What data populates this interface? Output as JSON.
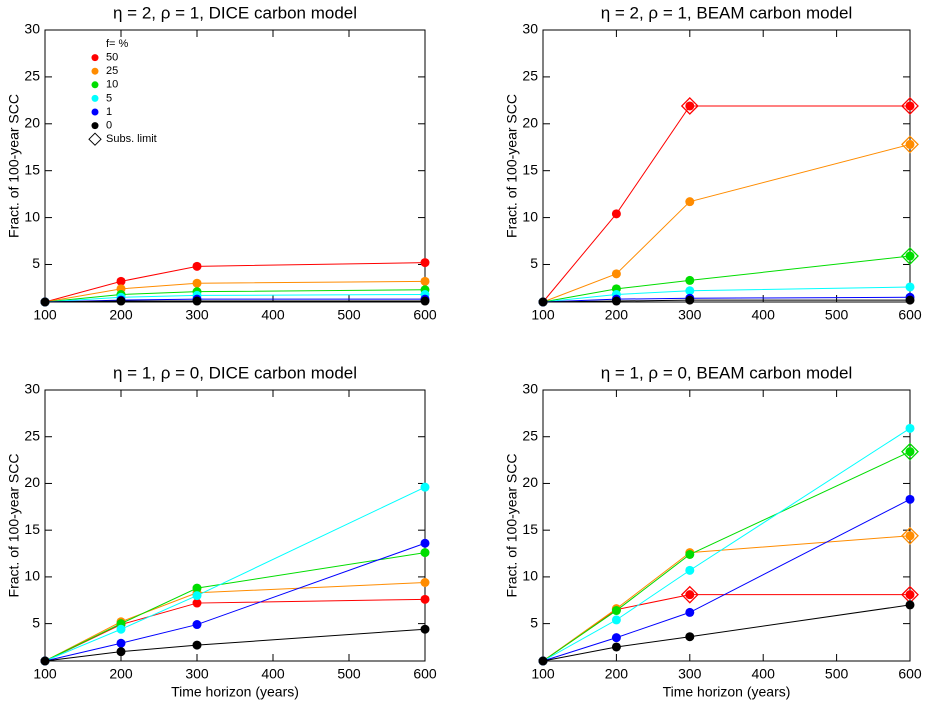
{
  "chart_data": [
    {
      "type": "line",
      "title": "η = 2, ρ = 1, DICE carbon model",
      "ylabel": "Fract. of 100-year SCC",
      "x": [
        100,
        200,
        300,
        600
      ],
      "xlim": [
        100,
        600
      ],
      "xticks": [
        100,
        200,
        300,
        400,
        500,
        600
      ],
      "ylim": [
        1,
        30
      ],
      "yticks": [
        5,
        10,
        15,
        20,
        25,
        30
      ],
      "legend_title": "f= %",
      "limit_label": "Subs. limit",
      "series": [
        {
          "name": "50",
          "color": "#ff0000",
          "values": [
            1,
            3.2,
            4.8,
            5.2
          ]
        },
        {
          "name": "25",
          "color": "#ff8c00",
          "values": [
            1,
            2.4,
            3.0,
            3.2
          ]
        },
        {
          "name": "10",
          "color": "#00dd00",
          "values": [
            1,
            1.8,
            2.1,
            2.3
          ]
        },
        {
          "name": "5",
          "color": "#00ffff",
          "values": [
            1,
            1.5,
            1.7,
            1.8
          ]
        },
        {
          "name": "1",
          "color": "#0000ff",
          "values": [
            1,
            1.2,
            1.3,
            1.3
          ]
        },
        {
          "name": "0",
          "color": "#000000",
          "values": [
            1,
            1.1,
            1.1,
            1.1
          ]
        }
      ]
    },
    {
      "type": "line",
      "title": "η = 2, ρ = 1, BEAM carbon model",
      "ylabel": "Fract. of 100-year SCC",
      "x": [
        100,
        200,
        300,
        600
      ],
      "xlim": [
        100,
        600
      ],
      "xticks": [
        100,
        200,
        300,
        400,
        500,
        600
      ],
      "ylim": [
        1,
        30
      ],
      "yticks": [
        5,
        10,
        15,
        20,
        25,
        30
      ],
      "series": [
        {
          "color": "#ff0000",
          "values": [
            1,
            10.4,
            21.9,
            21.9
          ],
          "limit_values": [
            null,
            null,
            21.9,
            21.9
          ]
        },
        {
          "color": "#ff8c00",
          "values": [
            1,
            4.0,
            11.7,
            17.8
          ],
          "limit_values": [
            null,
            null,
            null,
            17.8
          ]
        },
        {
          "color": "#00dd00",
          "values": [
            1,
            2.4,
            3.3,
            5.9
          ],
          "limit_values": [
            null,
            null,
            null,
            5.9
          ]
        },
        {
          "color": "#00ffff",
          "values": [
            1,
            1.8,
            2.2,
            2.6
          ]
        },
        {
          "color": "#0000ff",
          "values": [
            1,
            1.3,
            1.4,
            1.5
          ]
        },
        {
          "color": "#000000",
          "values": [
            1,
            1.1,
            1.2,
            1.2
          ]
        }
      ]
    },
    {
      "type": "line",
      "title": "η = 1, ρ = 0, DICE carbon model",
      "ylabel": "Fract. of 100-year SCC",
      "xlabel": "Time horizon (years)",
      "x": [
        100,
        200,
        300,
        600
      ],
      "xlim": [
        100,
        600
      ],
      "xticks": [
        100,
        200,
        300,
        400,
        500,
        600
      ],
      "ylim": [
        1,
        30
      ],
      "yticks": [
        5,
        10,
        15,
        20,
        25,
        30
      ],
      "series": [
        {
          "color": "#ff0000",
          "values": [
            1,
            4.9,
            7.2,
            7.6
          ]
        },
        {
          "color": "#ff8c00",
          "values": [
            1,
            5.2,
            8.3,
            9.4
          ]
        },
        {
          "color": "#00dd00",
          "values": [
            1,
            5.0,
            8.8,
            12.6
          ]
        },
        {
          "color": "#00ffff",
          "values": [
            1,
            4.4,
            8.0,
            19.6
          ]
        },
        {
          "color": "#0000ff",
          "values": [
            1,
            2.9,
            4.9,
            13.6
          ]
        },
        {
          "color": "#000000",
          "values": [
            1,
            2.0,
            2.7,
            4.4
          ]
        }
      ]
    },
    {
      "type": "line",
      "title": "η = 1, ρ = 0, BEAM carbon model",
      "ylabel": "Fract. of 100-year SCC",
      "xlabel": "Time horizon (years)",
      "x": [
        100,
        200,
        300,
        600
      ],
      "xlim": [
        100,
        600
      ],
      "xticks": [
        100,
        200,
        300,
        400,
        500,
        600
      ],
      "ylim": [
        1,
        30
      ],
      "yticks": [
        5,
        10,
        15,
        20,
        25,
        30
      ],
      "series": [
        {
          "color": "#ff0000",
          "values": [
            1,
            6.5,
            8.1,
            8.1
          ],
          "limit_values": [
            null,
            null,
            8.1,
            8.1
          ]
        },
        {
          "color": "#ff8c00",
          "values": [
            1,
            6.6,
            12.6,
            14.4
          ],
          "limit_values": [
            null,
            null,
            null,
            14.4
          ]
        },
        {
          "color": "#00dd00",
          "values": [
            1,
            6.4,
            12.4,
            23.4
          ],
          "limit_values": [
            null,
            null,
            null,
            23.4
          ]
        },
        {
          "color": "#00ffff",
          "values": [
            1,
            5.4,
            10.7,
            25.9
          ]
        },
        {
          "color": "#0000ff",
          "values": [
            1,
            3.5,
            6.2,
            18.3
          ]
        },
        {
          "color": "#000000",
          "values": [
            1,
            2.5,
            3.6,
            7.0
          ]
        }
      ]
    }
  ]
}
